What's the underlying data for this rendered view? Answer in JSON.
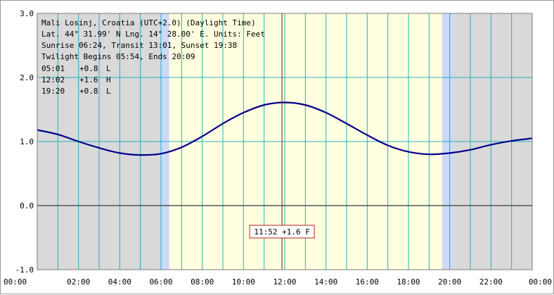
{
  "info": {
    "location": "Mali Losinj, Croatia (UTC+2.0) (Daylight Time)",
    "coords": "Lat. 44° 31.99' N Lng. 14° 28.00' E. Units: Feet",
    "sun": "Sunrise 06:24, Transit 13:01, Sunset 19:38",
    "twilight": "Twilight Begins 05:54, Ends 20:09",
    "tides": [
      {
        "time": "05:01",
        "height": "+0.8",
        "type": "L"
      },
      {
        "time": "12:02",
        "height": "+1.6",
        "type": "H"
      },
      {
        "time": "19:20",
        "height": "+0.8",
        "type": "L"
      }
    ]
  },
  "cursor": {
    "time": 11.867,
    "label": "11:52 +1.6 F"
  },
  "colors": {
    "night": "#d9d9d9",
    "twilight": "#cdd9f7",
    "day": "#ffffe0",
    "grid": "#22b0c0",
    "curve": "#00008b",
    "zero_line": "#555555",
    "cursor": "#6b1d05",
    "cursor_box": "#b22222"
  },
  "chart_data": {
    "type": "line",
    "title": "",
    "xlabel": "",
    "ylabel": "",
    "xlim": [
      0,
      24
    ],
    "ylim": [
      -1.0,
      3.0
    ],
    "x_ticks": [
      "00:00",
      "02:00",
      "04:00",
      "06:00",
      "08:00",
      "10:00",
      "12:00",
      "14:00",
      "16:00",
      "18:00",
      "20:00",
      "22:00",
      "00:00"
    ],
    "y_ticks": [
      "3.0",
      "2.0",
      "1.0",
      "0.0",
      "-1.0"
    ],
    "y_tick_values": [
      3.0,
      2.0,
      1.0,
      0.0,
      -1.0
    ],
    "grid": true,
    "bands": {
      "twilight_begin": 5.9,
      "sunrise": 6.4,
      "sunset": 19.633,
      "twilight_end": 20.15
    },
    "series": [
      {
        "x": [
          0,
          1,
          2,
          3,
          4,
          5,
          6,
          7,
          8,
          9,
          10,
          11,
          12,
          13,
          14,
          15,
          16,
          17,
          18,
          19,
          20,
          21,
          22,
          23,
          24
        ],
        "values": [
          1.18,
          1.11,
          1.0,
          0.9,
          0.82,
          0.79,
          0.81,
          0.91,
          1.08,
          1.28,
          1.45,
          1.57,
          1.61,
          1.57,
          1.45,
          1.28,
          1.1,
          0.94,
          0.84,
          0.8,
          0.82,
          0.87,
          0.95,
          1.01,
          1.05
        ]
      }
    ]
  }
}
